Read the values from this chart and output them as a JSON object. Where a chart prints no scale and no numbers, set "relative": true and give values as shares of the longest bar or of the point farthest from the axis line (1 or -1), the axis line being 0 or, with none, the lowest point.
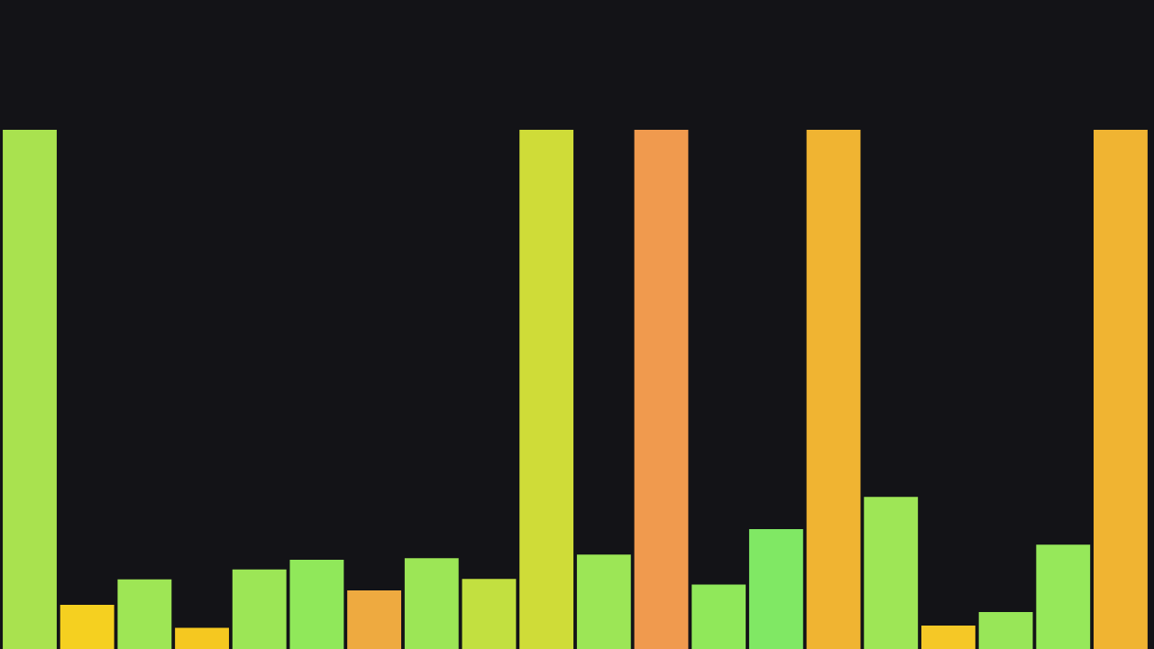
{
  "chart_data": {
    "type": "bar",
    "relative": true,
    "categories": [
      null,
      null,
      null,
      null,
      null,
      null,
      null,
      null,
      null,
      null,
      null,
      null,
      null,
      null,
      null,
      null,
      null,
      null,
      null,
      null
    ],
    "values": [
      1,
      0.085,
      0.134,
      0.041,
      0.153,
      0.172,
      0.113,
      0.175,
      0.135,
      1,
      0.182,
      1,
      0.124,
      0.231,
      1,
      0.293,
      0.045,
      0.071,
      0.201,
      1
    ],
    "colors": [
      "#a9e24f",
      "#f5d020",
      "#9ee655",
      "#f5c820",
      "#9ce656",
      "#90e85a",
      "#eeaa40",
      "#9ce656",
      "#c2e040",
      "#cfdc38",
      "#9ce656",
      "#f09a4e",
      "#90e85a",
      "#80e864",
      "#f0b432",
      "#9ee656",
      "#f5c826",
      "#98e658",
      "#96e85a",
      "#f0b432"
    ]
  }
}
